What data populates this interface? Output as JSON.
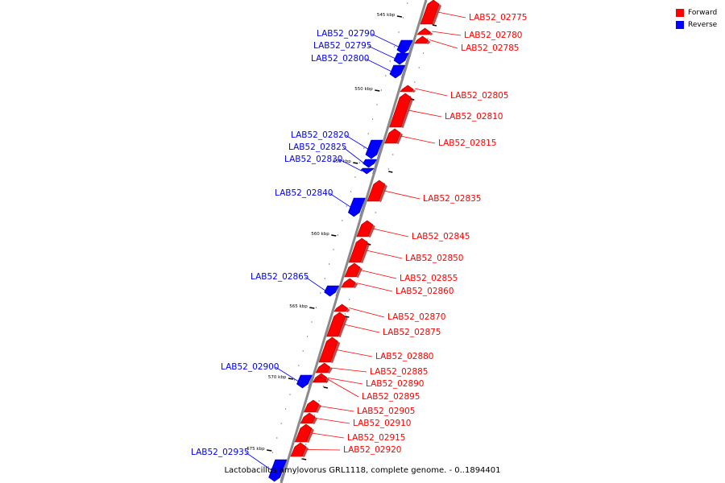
{
  "colors": {
    "forward": "#ff0000",
    "reverse": "#0000ff",
    "backbone": "#8a8a8a"
  },
  "legend": {
    "forward": "Forward",
    "reverse": "Reverse"
  },
  "caption": "Lactobacillus amylovorus GRL1118, complete genome. - 0..1894401",
  "ticks": [
    "545 kbp",
    "550 kbp",
    "555 kbp",
    "560 kbp",
    "565 kbp",
    "570 kbp",
    "575 kbp"
  ],
  "genes": [
    {
      "label": "LAB52_02775",
      "strand": "forward"
    },
    {
      "label": "LAB52_02780",
      "strand": "forward"
    },
    {
      "label": "LAB52_02785",
      "strand": "forward"
    },
    {
      "label": "LAB52_02790",
      "strand": "reverse"
    },
    {
      "label": "LAB52_02795",
      "strand": "reverse"
    },
    {
      "label": "LAB52_02800",
      "strand": "reverse"
    },
    {
      "label": "LAB52_02805",
      "strand": "forward"
    },
    {
      "label": "LAB52_02810",
      "strand": "forward"
    },
    {
      "label": "LAB52_02815",
      "strand": "forward"
    },
    {
      "label": "LAB52_02820",
      "strand": "reverse"
    },
    {
      "label": "LAB52_02825",
      "strand": "reverse"
    },
    {
      "label": "LAB52_02830",
      "strand": "reverse"
    },
    {
      "label": "LAB52_02835",
      "strand": "forward"
    },
    {
      "label": "LAB52_02840",
      "strand": "reverse"
    },
    {
      "label": "LAB52_02845",
      "strand": "forward"
    },
    {
      "label": "LAB52_02850",
      "strand": "forward"
    },
    {
      "label": "LAB52_02855",
      "strand": "forward"
    },
    {
      "label": "LAB52_02860",
      "strand": "forward"
    },
    {
      "label": "LAB52_02865",
      "strand": "reverse"
    },
    {
      "label": "LAB52_02870",
      "strand": "forward"
    },
    {
      "label": "LAB52_02875",
      "strand": "forward"
    },
    {
      "label": "LAB52_02880",
      "strand": "forward"
    },
    {
      "label": "LAB52_02885",
      "strand": "forward"
    },
    {
      "label": "LAB52_02890",
      "strand": "forward"
    },
    {
      "label": "LAB52_02895",
      "strand": "forward"
    },
    {
      "label": "LAB52_02900",
      "strand": "reverse"
    },
    {
      "label": "LAB52_02905",
      "strand": "forward"
    },
    {
      "label": "LAB52_02910",
      "strand": "forward"
    },
    {
      "label": "LAB52_02915",
      "strand": "forward"
    },
    {
      "label": "LAB52_02920",
      "strand": "forward"
    },
    {
      "label": "LAB52_02935",
      "strand": "reverse"
    }
  ]
}
